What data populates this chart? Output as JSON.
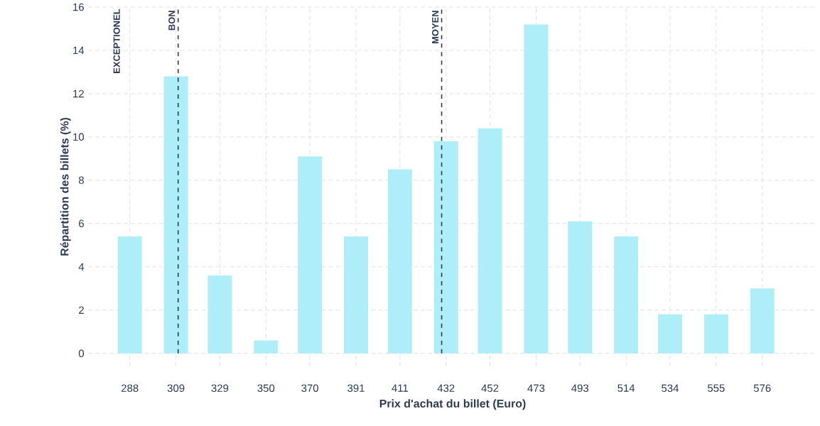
{
  "chart_data": {
    "type": "bar",
    "xlabel": "Prix d'achat du billet (Euro)",
    "ylabel": "Répartition des billets (%)",
    "x": [
      288,
      309,
      329,
      350,
      370,
      391,
      411,
      432,
      452,
      473,
      493,
      514,
      534,
      555,
      576
    ],
    "values": [
      5.4,
      12.8,
      3.6,
      0.6,
      9.1,
      5.4,
      8.5,
      9.8,
      10.4,
      15.2,
      6.1,
      5.4,
      1.8,
      1.8,
      3.0
    ],
    "color": "#aeeef8",
    "xlim": [
      269,
      601
    ],
    "xticks": [
      288,
      309,
      329,
      350,
      370,
      391,
      411,
      432,
      452,
      473,
      493,
      514,
      534,
      555,
      576
    ],
    "ylim": [
      -0.6,
      16
    ],
    "yticks": [
      0,
      2,
      4,
      6,
      8,
      10,
      12,
      14,
      16
    ],
    "grid": true,
    "ref_lines": [
      {
        "axis": "x",
        "value": 310,
        "label": "BON",
        "color": "#2b3a55",
        "line_style": "dashed"
      },
      {
        "axis": "x",
        "value": 430,
        "label": "MOYEN",
        "color": "#2b3a55",
        "line_style": "dashed"
      }
    ],
    "annotations": [
      "EXCEPTIONEL"
    ]
  }
}
